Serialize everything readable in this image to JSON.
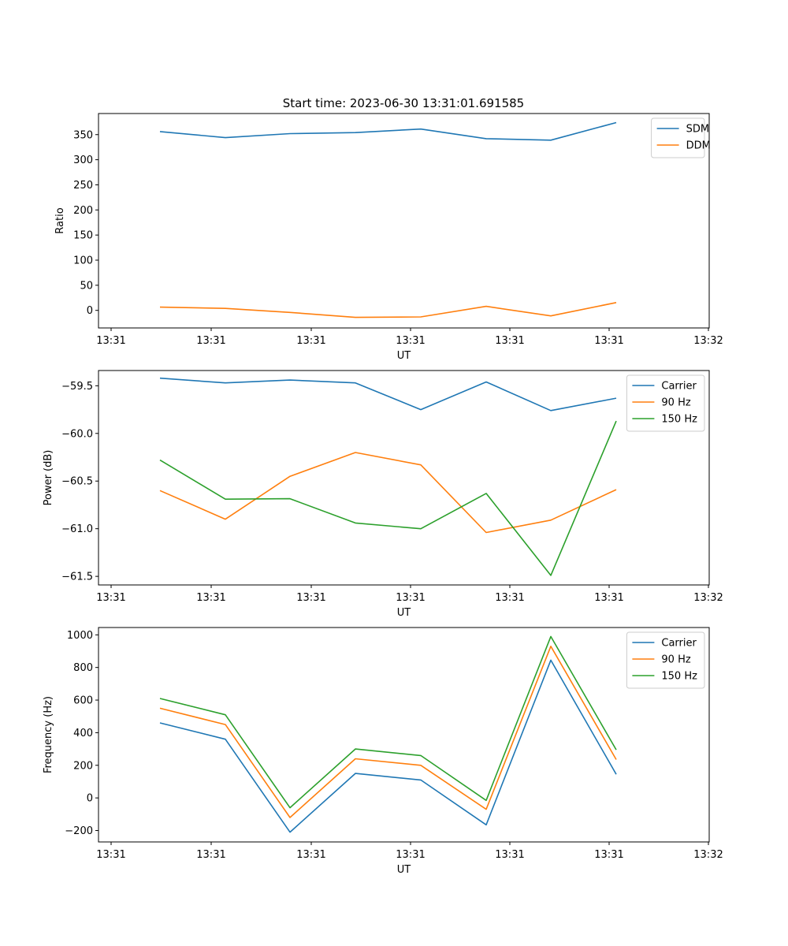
{
  "title": "Start time: 2023-06-30 13:31:01.691585",
  "x_tick_labels": [
    "13:31",
    "13:31",
    "13:31",
    "13:31",
    "13:31",
    "13:31",
    "13:31"
  ],
  "chart_data": [
    {
      "type": "line",
      "xlabel": "UT",
      "ylabel": "Ratio",
      "x_tick_labels": [
        "13:31",
        "13:31",
        "13:31",
        "13:31",
        "13:31",
        "13:31",
        "13:32"
      ],
      "yticks": [
        0,
        50,
        100,
        150,
        200,
        250,
        300,
        350
      ],
      "ylim": [
        -35,
        392
      ],
      "legend_position": "upper-right",
      "series": [
        {
          "name": "SDM",
          "color": "#1f77b4",
          "values": [
            356,
            344,
            352,
            354,
            361,
            342,
            339,
            374
          ]
        },
        {
          "name": "DDM",
          "color": "#ff7f0e",
          "values": [
            6.5,
            4,
            -4,
            -14,
            -13,
            8,
            -11,
            15.5
          ]
        }
      ]
    },
    {
      "type": "line",
      "xlabel": "UT",
      "ylabel": "Power (dB)",
      "x_tick_labels": [
        "13:31",
        "13:31",
        "13:31",
        "13:31",
        "13:31",
        "13:31",
        "13:32"
      ],
      "yticks": [
        -61.5,
        -61.0,
        -60.5,
        -60.0,
        -59.5
      ],
      "ytick_labels": [
        "−61.5",
        "−61.0",
        "−60.5",
        "−60.0",
        "−59.5"
      ],
      "ylim": [
        -61.59,
        -59.34
      ],
      "legend_position": "upper-right",
      "series": [
        {
          "name": "Carrier",
          "color": "#1f77b4",
          "values": [
            -59.42,
            -59.47,
            -59.44,
            -59.47,
            -59.75,
            -59.46,
            -59.76,
            -59.63
          ]
        },
        {
          "name": "90 Hz",
          "color": "#ff7f0e",
          "values": [
            -60.6,
            -60.9,
            -60.45,
            -60.2,
            -60.33,
            -61.04,
            -60.91,
            -60.59
          ]
        },
        {
          "name": "150 Hz",
          "color": "#2ca02c",
          "values": [
            -60.28,
            -60.69,
            -60.685,
            -60.94,
            -61.0,
            -60.63,
            -61.49,
            -59.87
          ]
        }
      ]
    },
    {
      "type": "line",
      "xlabel": "UT",
      "ylabel": "Frequency (Hz)",
      "x_tick_labels": [
        "13:31",
        "13:31",
        "13:31",
        "13:31",
        "13:31",
        "13:31",
        "13:32"
      ],
      "yticks": [
        -200,
        0,
        200,
        400,
        600,
        800,
        1000
      ],
      "ytick_labels": [
        "−200",
        "0",
        "200",
        "400",
        "600",
        "800",
        "1000"
      ],
      "ylim": [
        -270,
        1045
      ],
      "legend_position": "upper-right",
      "series": [
        {
          "name": "Carrier",
          "color": "#1f77b4",
          "values": [
            460,
            360,
            -210,
            150,
            110,
            -165,
            845,
            145
          ]
        },
        {
          "name": "90 Hz",
          "color": "#ff7f0e",
          "values": [
            550,
            450,
            -120,
            240,
            200,
            -70,
            930,
            235
          ]
        },
        {
          "name": "150 Hz",
          "color": "#2ca02c",
          "values": [
            610,
            510,
            -60,
            300,
            260,
            -15,
            990,
            295
          ]
        }
      ]
    }
  ]
}
